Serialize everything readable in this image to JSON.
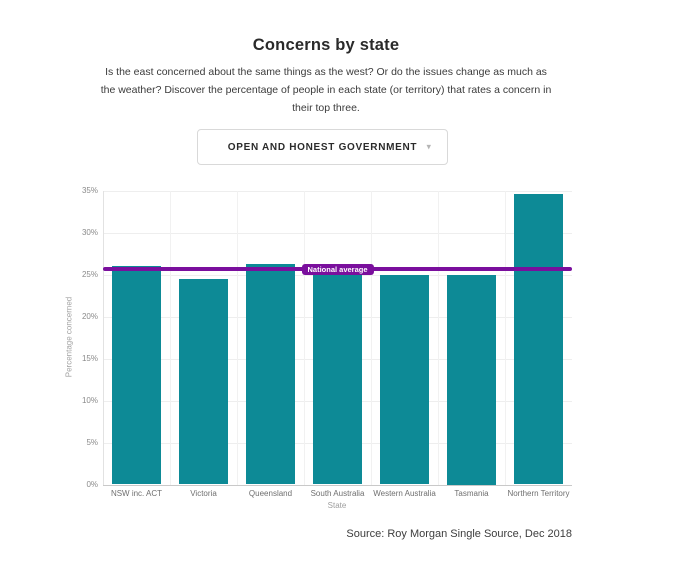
{
  "header": {
    "title": "Concerns by state",
    "description": "Is the east concerned about the same things as the west? Or do the issues change as much as the weather? Discover the percentage of people in each state (or territory) that rates a concern in their top three."
  },
  "dropdown": {
    "selected": "OPEN AND HONEST GOVERNMENT",
    "caret_icon": "▾"
  },
  "chart_data": {
    "type": "bar",
    "title": "Concerns by state",
    "categories": [
      "NSW inc. ACT",
      "Victoria",
      "Queensland",
      "South Australia",
      "Western Australia",
      "Tasmania",
      "Northern Territory"
    ],
    "values": [
      26.0,
      24.5,
      26.2,
      24.9,
      24.9,
      25.0,
      34.6
    ],
    "national_average": 25.6,
    "average_label": "National average",
    "xlabel": "State",
    "ylabel": "Percentage concerned",
    "ylim": [
      0,
      35
    ],
    "ytick_step": 5,
    "ytick_suffix": "%",
    "grid": true,
    "legend": "none",
    "bar_color": "#0d8a96",
    "average_color": "#7a0f9d"
  },
  "footer": {
    "source": "Source: Roy Morgan Single Source, Dec 2018"
  }
}
